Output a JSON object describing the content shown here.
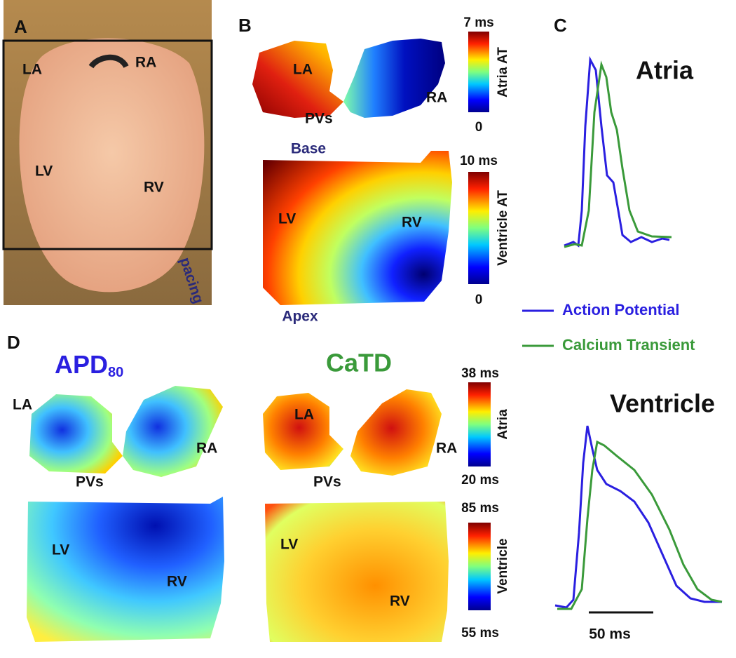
{
  "panel_a": {
    "label": "A",
    "la": "LA",
    "ra": "RA",
    "lv": "LV",
    "rv": "RV",
    "pacing": "pacing"
  },
  "panel_b": {
    "label": "B",
    "atria": {
      "la": "LA",
      "ra": "RA",
      "pvs": "PVs",
      "bar_max": "7 ms",
      "bar_min": "0",
      "bar_title": "Atria AT"
    },
    "ventricle": {
      "top": "Base",
      "bottom": "Apex",
      "lv": "LV",
      "rv": "RV",
      "bar_max": "10 ms",
      "bar_min": "0",
      "bar_title": "Ventricle AT"
    }
  },
  "panel_c": {
    "label": "C",
    "atria_title": "Atria",
    "ventricle_title": "Ventricle",
    "legend": [
      "Action Potential",
      "Calcium Transient"
    ],
    "scale_bar": "50 ms"
  },
  "panel_d": {
    "label": "D",
    "apd_title": {
      "main": "APD",
      "sub": "80"
    },
    "catd_title": "CaTD",
    "apd_atria": {
      "la": "LA",
      "ra": "RA",
      "pvs": "PVs"
    },
    "catd_atria": {
      "la": "LA",
      "ra": "RA",
      "pvs": "PVs"
    },
    "apd_ventricle": {
      "lv": "LV",
      "rv": "RV"
    },
    "catd_ventricle": {
      "lv": "LV",
      "rv": "RV"
    },
    "atria_bar": {
      "max": "38 ms",
      "min": "20 ms",
      "title": "Atria"
    },
    "ventricle_bar": {
      "max": "85 ms",
      "min": "55 ms",
      "title": "Ventricle"
    }
  }
}
